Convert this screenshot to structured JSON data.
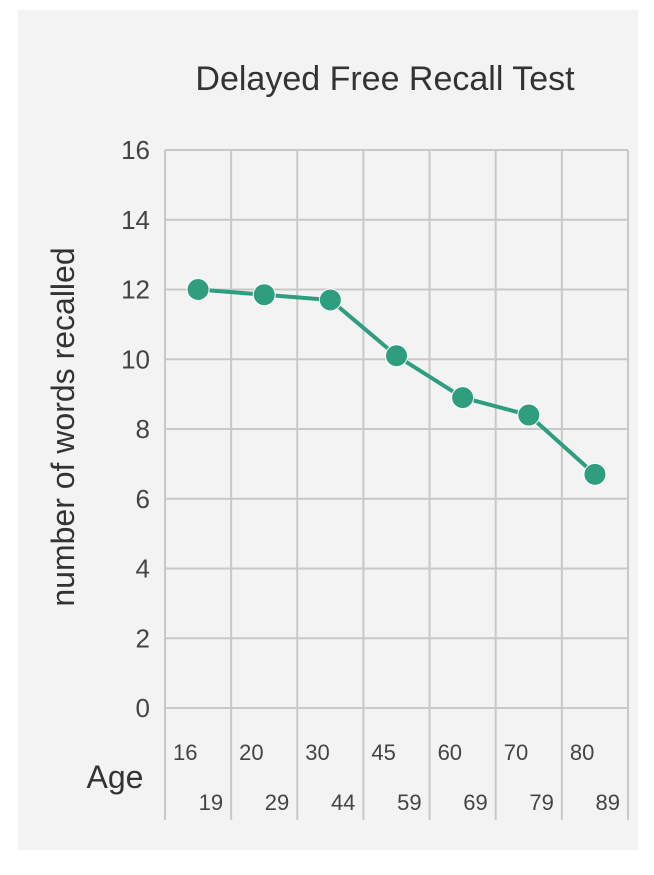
{
  "chart_data": {
    "type": "line",
    "title": "Delayed Free Recall Test",
    "xlabel": "Age",
    "ylabel": "number of words recalled",
    "categories": [
      {
        "top": "16",
        "bottom": "19"
      },
      {
        "top": "20",
        "bottom": "29"
      },
      {
        "top": "30",
        "bottom": "44"
      },
      {
        "top": "45",
        "bottom": "59"
      },
      {
        "top": "60",
        "bottom": "69"
      },
      {
        "top": "70",
        "bottom": "79"
      },
      {
        "top": "80",
        "bottom": "89"
      }
    ],
    "values": [
      12.0,
      11.85,
      11.7,
      10.1,
      8.9,
      8.4,
      6.7
    ],
    "ylim": [
      0,
      16
    ],
    "yticks": [
      "0",
      "2",
      "4",
      "6",
      "8",
      "10",
      "12",
      "14",
      "16"
    ],
    "grid": true,
    "colors": {
      "series": "#2e9e7e",
      "grid": "#c8c8c8",
      "background": "#f3f3f3"
    }
  }
}
